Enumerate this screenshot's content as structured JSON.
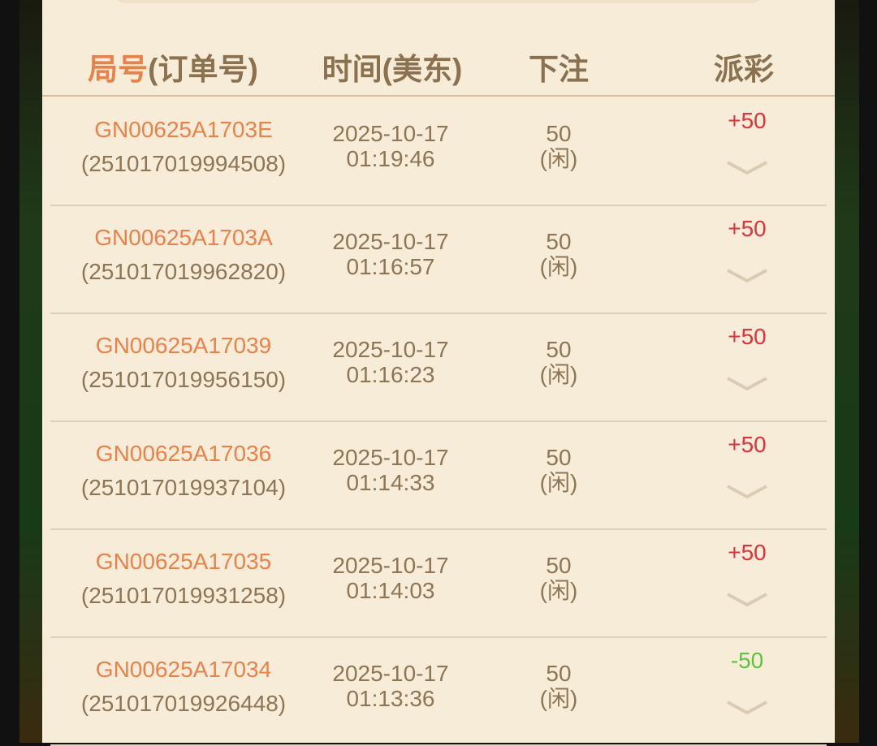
{
  "header": {
    "col1_highlight": "局号",
    "col1_rest": "(订单号)",
    "col2": "时间(美东)",
    "col3": "下注",
    "col4": "派彩"
  },
  "colors": {
    "win": "#e2313b",
    "loss": "#5cc43c",
    "accent": "#e9824a",
    "text": "#8c7656"
  },
  "rows": [
    {
      "round": "GN00625A1703E",
      "order": "(251017019994508)",
      "date": "2025-10-17",
      "time": "01:19:46",
      "bet": "50",
      "side": "(闲)",
      "payout": "+50",
      "result": "win"
    },
    {
      "round": "GN00625A1703A",
      "order": "(251017019962820)",
      "date": "2025-10-17",
      "time": "01:16:57",
      "bet": "50",
      "side": "(闲)",
      "payout": "+50",
      "result": "win"
    },
    {
      "round": "GN00625A17039",
      "order": "(251017019956150)",
      "date": "2025-10-17",
      "time": "01:16:23",
      "bet": "50",
      "side": "(闲)",
      "payout": "+50",
      "result": "win"
    },
    {
      "round": "GN00625A17036",
      "order": "(251017019937104)",
      "date": "2025-10-17",
      "time": "01:14:33",
      "bet": "50",
      "side": "(闲)",
      "payout": "+50",
      "result": "win"
    },
    {
      "round": "GN00625A17035",
      "order": "(251017019931258)",
      "date": "2025-10-17",
      "time": "01:14:03",
      "bet": "50",
      "side": "(闲)",
      "payout": "+50",
      "result": "win"
    },
    {
      "round": "GN00625A17034",
      "order": "(251017019926448)",
      "date": "2025-10-17",
      "time": "01:13:36",
      "bet": "50",
      "side": "(闲)",
      "payout": "-50",
      "result": "loss"
    }
  ]
}
